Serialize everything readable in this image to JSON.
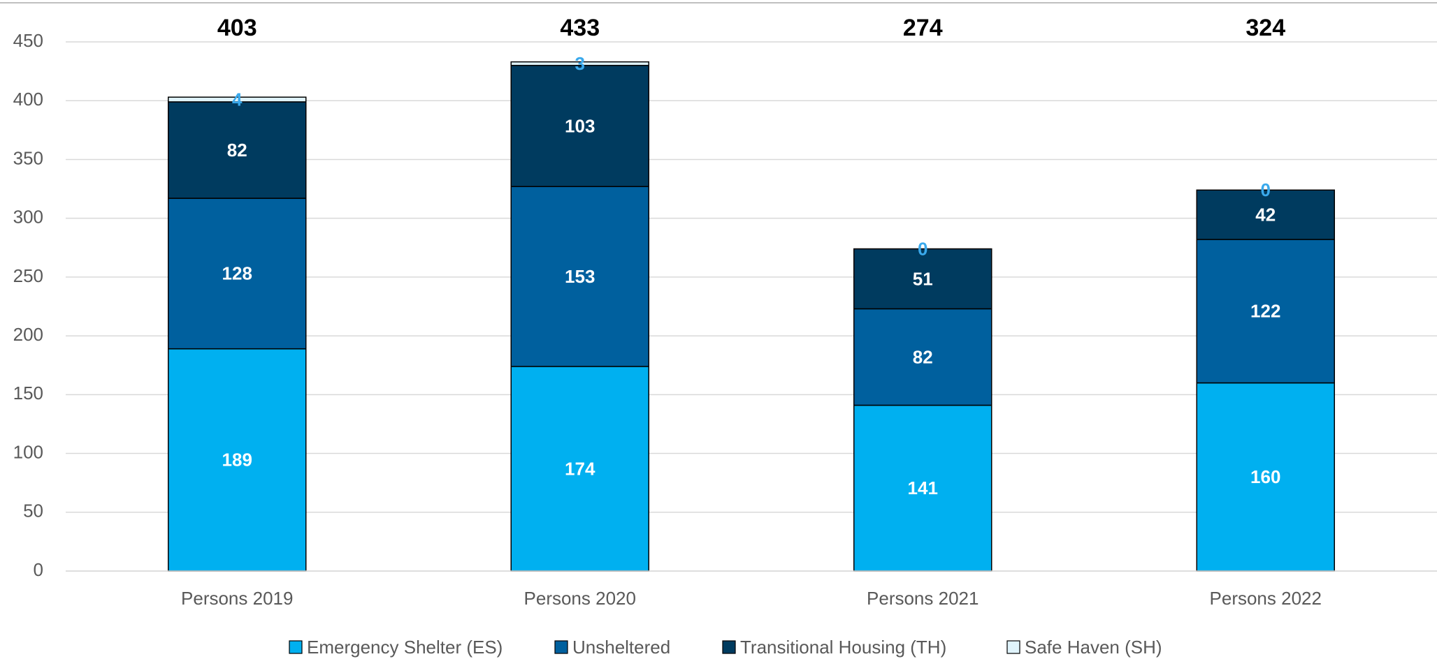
{
  "chart_data": {
    "type": "stacked-bar",
    "categories": [
      "Persons 2019",
      "Persons 2020",
      "Persons 2021",
      "Persons 2022"
    ],
    "totals": [
      403,
      433,
      274,
      324
    ],
    "series": [
      {
        "name": "Emergency Shelter (ES)",
        "color": "#00b0f0",
        "label_color": "#ffffff",
        "values": [
          189,
          174,
          141,
          160
        ]
      },
      {
        "name": "Unsheltered",
        "color": "#00609e",
        "label_color": "#ffffff",
        "values": [
          128,
          153,
          82,
          122
        ]
      },
      {
        "name": "Transitional Housing (TH)",
        "color": "#003b5f",
        "label_color": "#ffffff",
        "values": [
          82,
          103,
          51,
          42
        ]
      },
      {
        "name": "Safe Haven (SH)",
        "color": "#dff3fb",
        "label_color": "#3aa9ec",
        "values": [
          4,
          3,
          0,
          0
        ]
      }
    ],
    "ylim": [
      0,
      450
    ],
    "yticks": [
      0,
      50,
      100,
      150,
      200,
      250,
      300,
      350,
      400,
      450
    ],
    "grid": true,
    "legend": "bottom"
  }
}
